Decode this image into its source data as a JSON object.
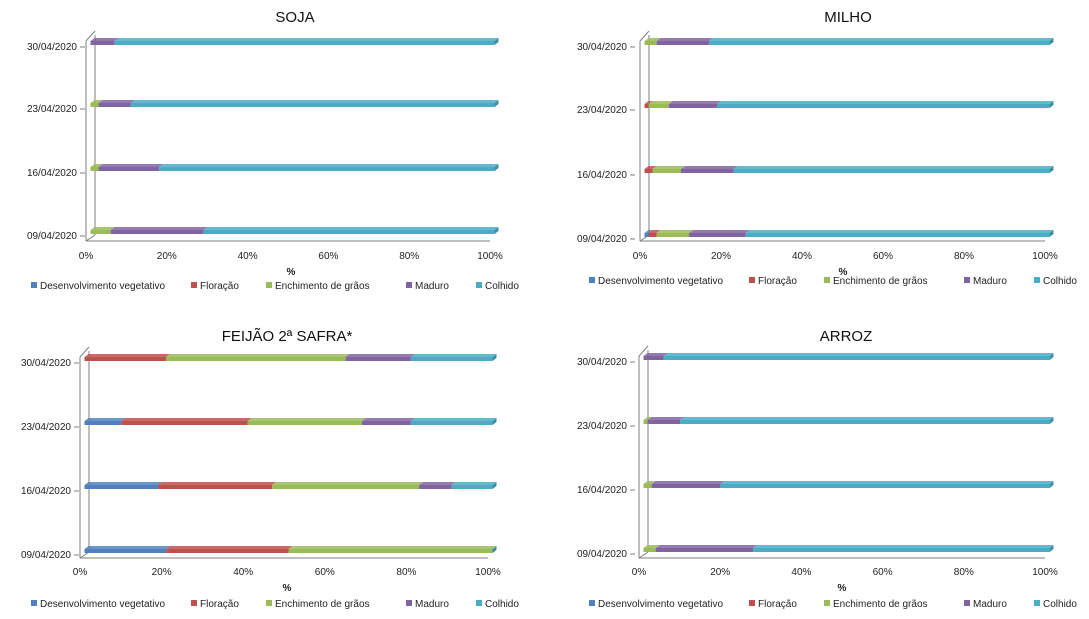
{
  "chart_data": [
    {
      "type": "bar",
      "title": "SOJA",
      "xlabel": "%",
      "xlim": [
        0,
        100
      ],
      "x_ticks": [
        "0%",
        "20%",
        "40%",
        "60%",
        "80%",
        "100%"
      ],
      "categories": [
        "09/04/2020",
        "16/04/2020",
        "23/04/2020",
        "30/04/2020"
      ],
      "series": [
        {
          "name": "Desenvolvimento vegetativo",
          "values": [
            0,
            0,
            0,
            0
          ]
        },
        {
          "name": "Floração",
          "values": [
            0,
            0,
            0,
            0
          ]
        },
        {
          "name": "Enchimento de grãos",
          "values": [
            5,
            2,
            2,
            0
          ]
        },
        {
          "name": "Maduro",
          "values": [
            23,
            15,
            8,
            6
          ]
        },
        {
          "name": "Colhido",
          "values": [
            72,
            83,
            90,
            94
          ]
        }
      ]
    },
    {
      "type": "bar",
      "title": "MILHO",
      "xlabel": "%",
      "xlim": [
        0,
        100
      ],
      "x_ticks": [
        "0%",
        "20%",
        "40%",
        "60%",
        "80%",
        "100%"
      ],
      "categories": [
        "09/04/2020",
        "16/04/2020",
        "23/04/2020",
        "30/04/2020"
      ],
      "series": [
        {
          "name": "Desenvolvimento vegetativo",
          "values": [
            1,
            0,
            0,
            0
          ]
        },
        {
          "name": "Floração",
          "values": [
            2,
            2,
            1,
            0
          ]
        },
        {
          "name": "Enchimento de grãos",
          "values": [
            8,
            7,
            5,
            3
          ]
        },
        {
          "name": "Maduro",
          "values": [
            14,
            13,
            12,
            13
          ]
        },
        {
          "name": "Colhido",
          "values": [
            75,
            78,
            82,
            84
          ]
        }
      ]
    },
    {
      "type": "bar",
      "title": "FEIJÃO 2ª SAFRA*",
      "xlabel": "%",
      "xlim": [
        0,
        100
      ],
      "x_ticks": [
        "0%",
        "20%",
        "40%",
        "60%",
        "80%",
        "100%"
      ],
      "categories": [
        "09/04/2020",
        "16/04/2020",
        "23/04/2020",
        "30/04/2020"
      ],
      "series": [
        {
          "name": "Desenvolvimento vegetativo",
          "values": [
            20,
            18,
            9,
            0
          ]
        },
        {
          "name": "Floração",
          "values": [
            30,
            28,
            31,
            20
          ]
        },
        {
          "name": "Enchimento de grãos",
          "values": [
            50,
            36,
            28,
            44
          ]
        },
        {
          "name": "Maduro",
          "values": [
            0,
            8,
            12,
            16
          ]
        },
        {
          "name": "Colhido",
          "values": [
            0,
            10,
            20,
            20
          ]
        }
      ]
    },
    {
      "type": "bar",
      "title": "ARROZ",
      "xlabel": "%",
      "xlim": [
        0,
        100
      ],
      "x_ticks": [
        "0%",
        "20%",
        "40%",
        "60%",
        "80%",
        "100%"
      ],
      "categories": [
        "09/04/2020",
        "16/04/2020",
        "23/04/2020",
        "30/04/2020"
      ],
      "series": [
        {
          "name": "Desenvolvimento vegetativo",
          "values": [
            0,
            0,
            0,
            0
          ]
        },
        {
          "name": "Floração",
          "values": [
            0,
            0,
            0,
            0
          ]
        },
        {
          "name": "Enchimento de grãos",
          "values": [
            3,
            2,
            1,
            0
          ]
        },
        {
          "name": "Maduro",
          "values": [
            24,
            17,
            8,
            5
          ]
        },
        {
          "name": "Colhido",
          "values": [
            73,
            81,
            91,
            95
          ]
        }
      ]
    }
  ],
  "colors": [
    "#4f81bd",
    "#c0504d",
    "#9bbb59",
    "#8064a2",
    "#4bacc6"
  ]
}
